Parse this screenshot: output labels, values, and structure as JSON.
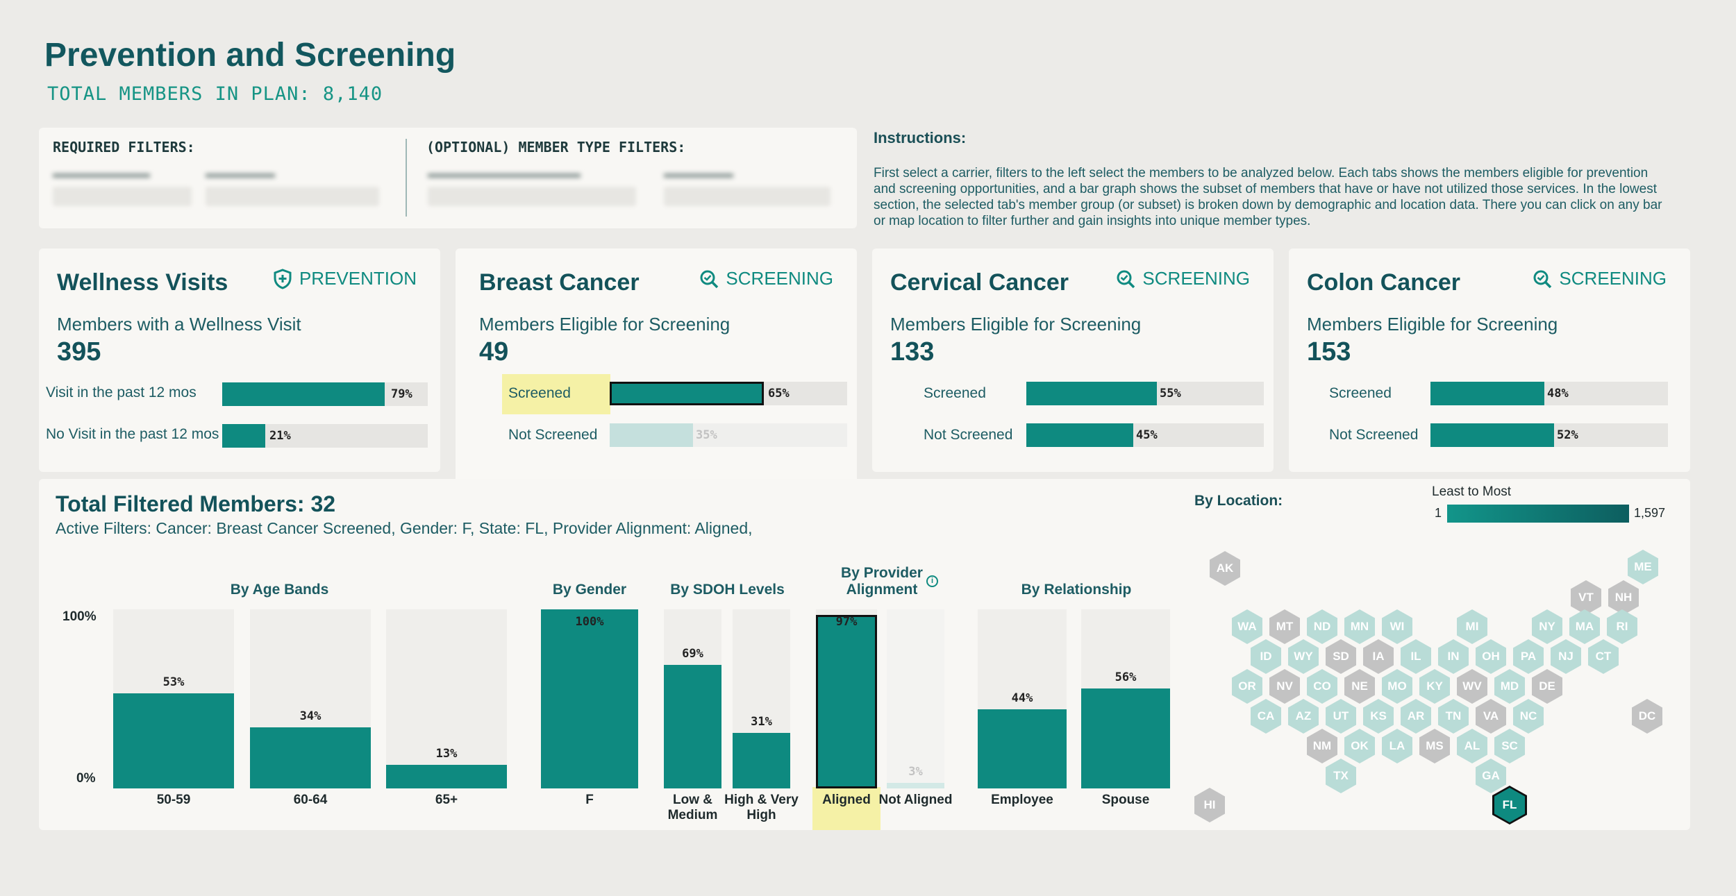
{
  "header": {
    "title": "Prevention and Screening",
    "total_members": "TOTAL MEMBERS IN PLAN: 8,140"
  },
  "filters": {
    "required_label": "REQUIRED FILTERS:",
    "optional_label": "(OPTIONAL) MEMBER TYPE FILTERS:"
  },
  "instructions": {
    "title": "Instructions:",
    "text": "First select a carrier, filters to the left select the members to be analyzed below. Each tabs shows the members eligible for prevention and screening opportunities, and a bar graph shows the subset of members that have or have not utilized those services. In the lowest section, the selected tab's member group (or subset) is broken down by demographic and location data. There you can click on any bar or map location to filter further and gain insights into unique member types."
  },
  "kpis": [
    {
      "title": "Wellness Visits",
      "tag": "PREVENTION",
      "icon": "shield-plus-icon",
      "subtitle": "Members with a Wellness Visit",
      "count": "395",
      "rows": [
        {
          "label": "Visit in the past 12 mos",
          "pct": "79%",
          "value": 79
        },
        {
          "label": "No Visit in the past 12 mos",
          "pct": "21%",
          "value": 21
        }
      ]
    },
    {
      "title": "Breast Cancer",
      "tag": "SCREENING",
      "icon": "magnify-check-icon",
      "subtitle": "Members Eligible for Screening",
      "count": "49",
      "rows": [
        {
          "label": "Screened",
          "pct": "65%",
          "value": 65
        },
        {
          "label": "Not Screened",
          "pct": "35%",
          "value": 35
        }
      ]
    },
    {
      "title": "Cervical Cancer",
      "tag": "SCREENING",
      "icon": "magnify-check-icon",
      "subtitle": "Members Eligible for Screening",
      "count": "133",
      "rows": [
        {
          "label": "Screened",
          "pct": "55%",
          "value": 55
        },
        {
          "label": "Not Screened",
          "pct": "45%",
          "value": 45
        }
      ]
    },
    {
      "title": "Colon Cancer",
      "tag": "SCREENING",
      "icon": "magnify-check-icon",
      "subtitle": "Members Eligible for Screening",
      "count": "153",
      "rows": [
        {
          "label": "Screened",
          "pct": "48%",
          "value": 48
        },
        {
          "label": "Not Screened",
          "pct": "52%",
          "value": 52
        }
      ]
    }
  ],
  "bottom": {
    "title": "Total Filtered Members: 32",
    "active_filters": "Active Filters:  Cancer: Breast Cancer Screened, Gender: F, State: FL,   Provider Alignment: Aligned,",
    "y_top": "100%",
    "y_bottom": "0%",
    "location_title": "By Location:",
    "legend": {
      "title": "Least to Most",
      "min": "1",
      "max": "1,597"
    }
  },
  "chart_data": [
    {
      "type": "bar",
      "title": "By Age Bands",
      "categories": [
        "50-59",
        "60-64",
        "65+"
      ],
      "values": [
        53,
        34,
        13
      ],
      "labels": [
        "53%",
        "34%",
        "13%"
      ],
      "ylim": [
        0,
        100
      ]
    },
    {
      "type": "bar",
      "title": "By Gender",
      "categories": [
        "F"
      ],
      "values": [
        100
      ],
      "labels": [
        "100%"
      ],
      "ylim": [
        0,
        100
      ]
    },
    {
      "type": "bar",
      "title": "By SDOH Levels",
      "categories": [
        "Low & Medium",
        "High & Very High"
      ],
      "values": [
        69,
        31
      ],
      "labels": [
        "69%",
        "31%"
      ],
      "ylim": [
        0,
        100
      ]
    },
    {
      "type": "bar",
      "title": "By Provider Alignment",
      "categories": [
        "Aligned",
        "Not Aligned"
      ],
      "values": [
        97,
        3
      ],
      "labels": [
        "97%",
        "3%"
      ],
      "ylim": [
        0,
        100
      ]
    },
    {
      "type": "bar",
      "title": "By Relationship",
      "categories": [
        "Employee",
        "Spouse"
      ],
      "values": [
        44,
        56
      ],
      "labels": [
        "44%",
        "56%"
      ],
      "ylim": [
        0,
        100
      ]
    }
  ],
  "map": {
    "states": [
      "AK",
      "ME",
      "VT",
      "NH",
      "WA",
      "MT",
      "ND",
      "MN",
      "WI",
      "MI",
      "NY",
      "MA",
      "RI",
      "ID",
      "WY",
      "SD",
      "IA",
      "IL",
      "IN",
      "OH",
      "PA",
      "NJ",
      "CT",
      "OR",
      "NV",
      "CO",
      "NE",
      "MO",
      "KY",
      "WV",
      "MD",
      "DE",
      "CA",
      "AZ",
      "UT",
      "KS",
      "AR",
      "TN",
      "VA",
      "NC",
      "DC",
      "NM",
      "OK",
      "LA",
      "MS",
      "AL",
      "SC",
      "TX",
      "GA",
      "HI",
      "FL"
    ],
    "selected": "FL"
  }
}
